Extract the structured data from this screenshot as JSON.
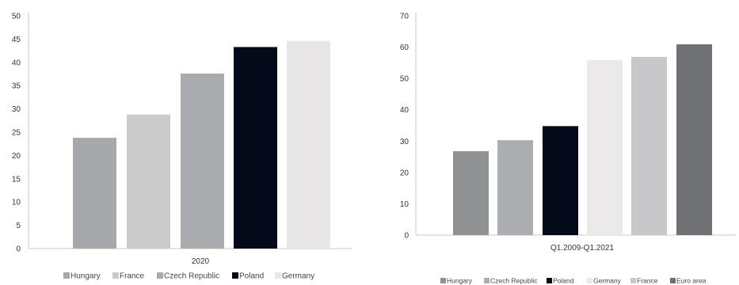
{
  "chart_data": [
    {
      "type": "bar",
      "categories": [
        "2020"
      ],
      "ylim": [
        0,
        50
      ],
      "yticks": [
        0,
        5,
        10,
        15,
        20,
        25,
        30,
        35,
        40,
        45,
        50
      ],
      "grid": false,
      "legend_position": "bottom",
      "series": [
        {
          "name": "Hungary",
          "color": "#a7a8ab",
          "values": [
            23.8
          ]
        },
        {
          "name": "France",
          "color": "#cbcbcc",
          "values": [
            28.8
          ]
        },
        {
          "name": "Czech Republic",
          "color": "#a9abae",
          "values": [
            37.6
          ]
        },
        {
          "name": "Poland",
          "color": "#040a1a",
          "values": [
            43.3
          ]
        },
        {
          "name": "Germany",
          "color": "#e8e6e7",
          "values": [
            44.6
          ]
        }
      ]
    },
    {
      "type": "bar",
      "categories": [
        "Q1.2009-Q1.2021"
      ],
      "ylim": [
        0,
        70
      ],
      "yticks": [
        0,
        10,
        20,
        30,
        40,
        50,
        60,
        70
      ],
      "grid": false,
      "legend_position": "bottom",
      "series": [
        {
          "name": "Hungary",
          "color": "#8f9193",
          "values": [
            26.8
          ]
        },
        {
          "name": "Czech Republic",
          "color": "#abadb0",
          "values": [
            30.3
          ]
        },
        {
          "name": "Poland",
          "color": "#040a1a",
          "values": [
            34.8
          ]
        },
        {
          "name": "Germany",
          "color": "#ebe9ea",
          "values": [
            55.9
          ]
        },
        {
          "name": "France",
          "color": "#c8c8ca",
          "values": [
            56.9
          ]
        },
        {
          "name": "Euro area",
          "color": "#6f7174",
          "values": [
            60.9
          ]
        }
      ]
    }
  ]
}
